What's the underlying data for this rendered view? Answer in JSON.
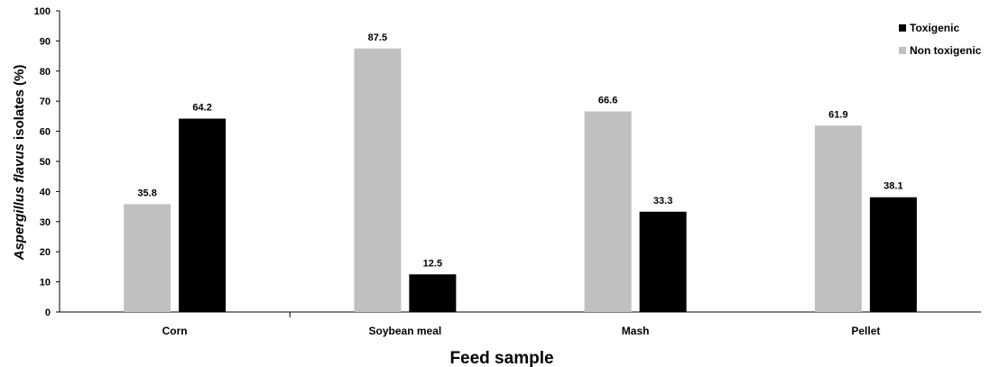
{
  "chart_data": {
    "type": "bar",
    "categories": [
      "Corn",
      "Soybean meal",
      "Mash",
      "Pellet"
    ],
    "series": [
      {
        "name": "Non toxigenic",
        "values": [
          35.8,
          87.5,
          66.6,
          61.9
        ],
        "color": "#c0c0c0"
      },
      {
        "name": "Toxigenic",
        "values": [
          64.2,
          12.5,
          33.3,
          38.1
        ],
        "color": "#000000"
      }
    ],
    "legend_order": [
      "Toxigenic",
      "Non toxigenic"
    ],
    "legend_position": "top-right",
    "xlabel": "Feed sample",
    "ylabel": {
      "italic": "Aspergillus flavus",
      "rest": " isolates (%)"
    },
    "ylim": [
      0,
      100
    ],
    "yticks": [
      0,
      10,
      20,
      30,
      40,
      50,
      60,
      70,
      80,
      90,
      100
    ],
    "grid": false
  }
}
